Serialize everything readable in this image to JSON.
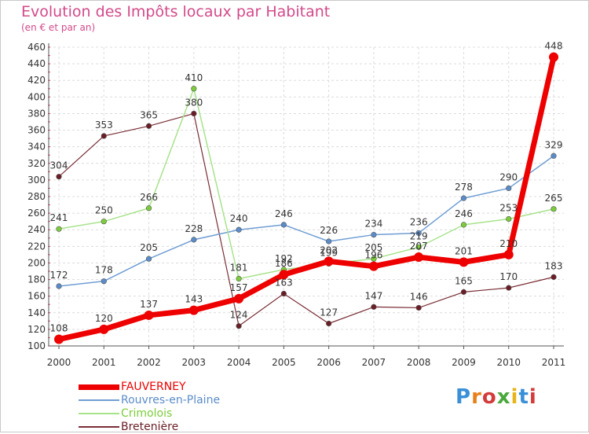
{
  "title": "Evolution des Impôts locaux par Habitant",
  "subtitle": "(en € et par an)",
  "logo": {
    "text": "Proxiti",
    "letter_colors": [
      "#3a8fd8",
      "#e8801a",
      "#d43a3a",
      "#49a83a",
      "#e8b41a",
      "#3a8fd8",
      "#d43a3a"
    ]
  },
  "chart_data": {
    "type": "line",
    "title": "Evolution des Impôts locaux par Habitant",
    "subtitle": "(en € et par an)",
    "x": [
      "2000",
      "2001",
      "2002",
      "2003",
      "2004",
      "2005",
      "2006",
      "2007",
      "2008",
      "2009",
      "2010",
      "2011"
    ],
    "ylim": [
      100,
      460
    ],
    "yticks": [
      100,
      120,
      140,
      160,
      180,
      200,
      220,
      240,
      260,
      280,
      300,
      320,
      340,
      360,
      380,
      400,
      420,
      440,
      460
    ],
    "grid": true,
    "legend": "bottom-left",
    "series": [
      {
        "name": "FAUVERNEY",
        "color": "#ee0000",
        "marker": "#ee0000",
        "width": 7,
        "values": [
          108,
          120,
          137,
          143,
          157,
          186,
          202,
          196,
          207,
          201,
          210,
          448
        ]
      },
      {
        "name": "Rouvres-en-Plaine",
        "color": "#6f9ed3",
        "marker": "#5b8cc9",
        "width": 1.5,
        "values": [
          172,
          178,
          205,
          228,
          240,
          246,
          226,
          234,
          236,
          278,
          290,
          329
        ]
      },
      {
        "name": "Crimolois",
        "color": "#a8e38c",
        "marker": "#7ccd3a",
        "width": 1.5,
        "values": [
          241,
          250,
          266,
          410,
          181,
          192,
          199,
          205,
          219,
          246,
          253,
          265
        ]
      },
      {
        "name": "Bretenière",
        "color": "#7a2e36",
        "marker": "#6a1d25",
        "width": 1.2,
        "values": [
          304,
          353,
          365,
          380,
          124,
          163,
          127,
          147,
          146,
          165,
          170,
          183
        ]
      }
    ]
  }
}
